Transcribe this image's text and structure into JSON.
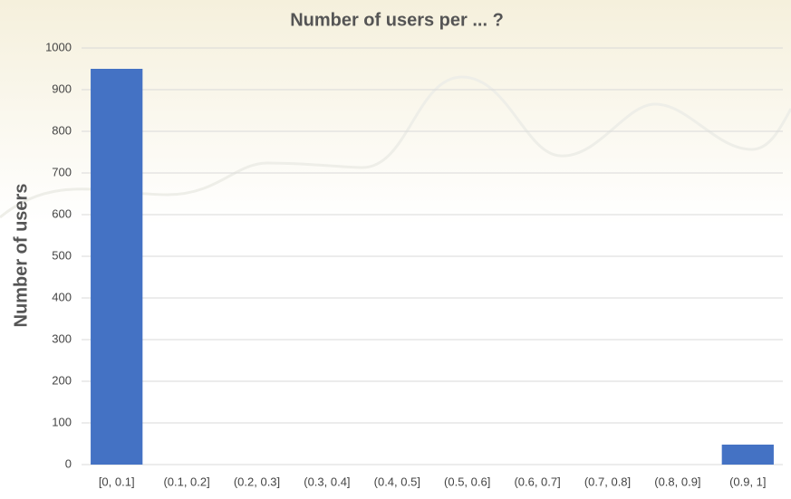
{
  "chart_data": {
    "type": "bar",
    "title": "Number of users per ... ?",
    "y_label": "Number of users",
    "categories": [
      "[0, 0.1]",
      "(0.1, 0.2]",
      "(0.2, 0.3]",
      "(0.3, 0.4]",
      "(0.4, 0.5]",
      "(0.5, 0.6]",
      "(0.6, 0.7]",
      "(0.7, 0.8]",
      "(0.8, 0.9]",
      "(0.9, 1]"
    ],
    "values": [
      950,
      0,
      0,
      0,
      0,
      0,
      0,
      0,
      0,
      48
    ],
    "color": "#4472c4",
    "ylim": [
      0,
      1000
    ],
    "yticks": [
      0,
      100,
      200,
      300,
      400,
      500,
      600,
      700,
      800,
      900,
      1000
    ],
    "grid": true
  }
}
